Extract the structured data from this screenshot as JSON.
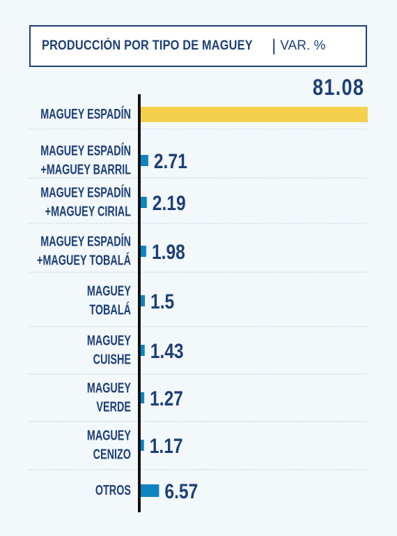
{
  "title": "PRODUCCIÓN POR TIPO DE MAGUEY",
  "separator": "|",
  "unit": "VAR. %",
  "colors": {
    "highlight": "#f5d04c",
    "bar": "#0e84c0",
    "text": "#1d3f77",
    "axis": "#111111",
    "divider": "#a9b7c2"
  },
  "chart_data": {
    "type": "bar",
    "orientation": "horizontal",
    "categories": [
      [
        "MAGUEY ESPADÍN"
      ],
      [
        "MAGUEY ESPADÍN",
        "+MAGUEY BARRIL"
      ],
      [
        "MAGUEY ESPADÍN",
        "+MAGUEY CIRIAL"
      ],
      [
        "MAGUEY ESPADÍN",
        "+MAGUEY TOBALÁ"
      ],
      [
        "MAGUEY",
        "TOBALÁ"
      ],
      [
        "MAGUEY",
        "CUISHE"
      ],
      [
        "MAGUEY",
        "VERDE"
      ],
      [
        "MAGUEY",
        "CENIZO"
      ],
      [
        "OTROS"
      ]
    ],
    "values": [
      81.08,
      2.71,
      2.19,
      1.98,
      1.5,
      1.43,
      1.27,
      1.17,
      6.57
    ],
    "value_labels": [
      "81.08",
      "2.71",
      "2.19",
      "1.98",
      "1.5",
      "1.43",
      "1.27",
      "1.17",
      "6.57"
    ],
    "xlim": [
      0,
      81.08
    ],
    "grid": false
  }
}
